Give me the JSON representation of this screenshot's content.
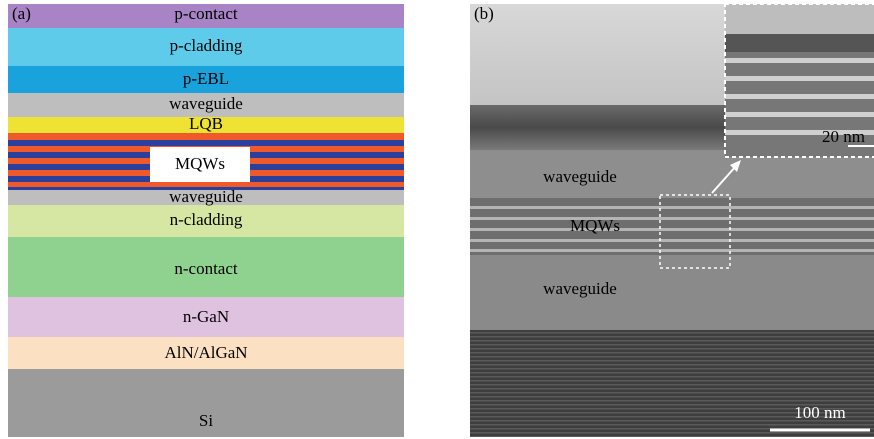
{
  "panels": {
    "a": {
      "label": "(a)",
      "layers": [
        "p-contact",
        "p-cladding",
        "p-EBL",
        "waveguide",
        "LQB",
        "MQWs",
        "waveguide",
        "n-cladding",
        "n-contact",
        "n-GaN",
        "AlN/AlGaN",
        "Si"
      ]
    },
    "b": {
      "label": "(b)",
      "labels": [
        "waveguide",
        "MQWs",
        "waveguide"
      ],
      "inset_scale": "20 nm",
      "scale": "100 nm"
    }
  }
}
